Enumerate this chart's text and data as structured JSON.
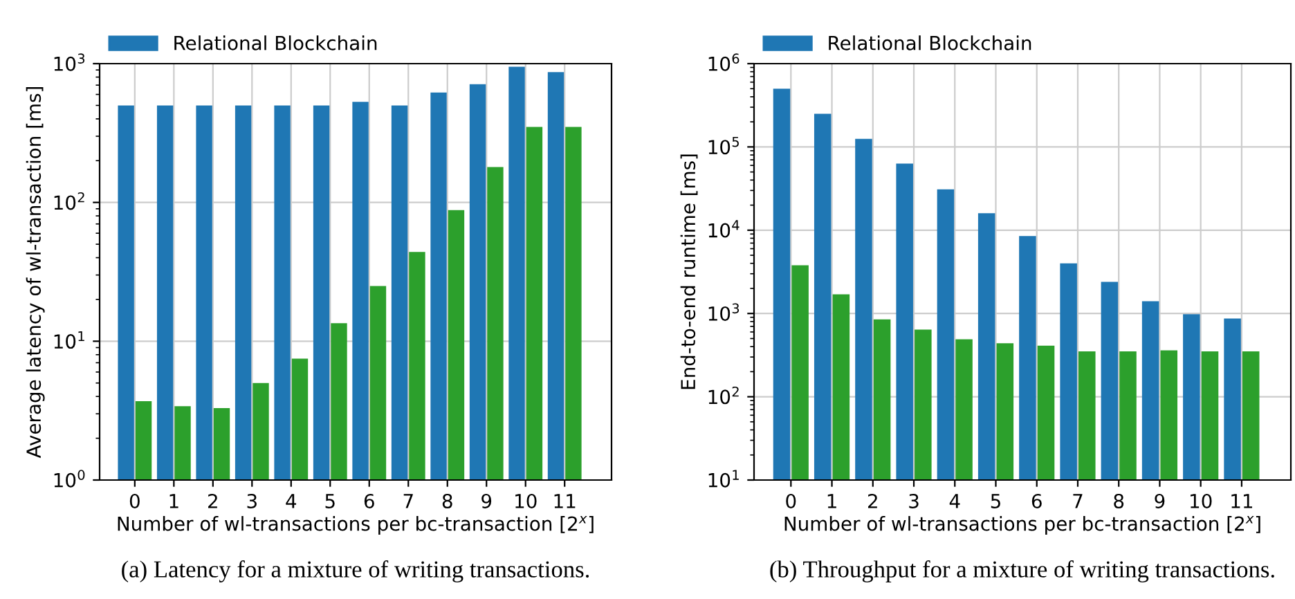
{
  "chart_data": [
    {
      "type": "bar",
      "categories": [
        "0",
        "1",
        "2",
        "3",
        "4",
        "5",
        "6",
        "7",
        "8",
        "9",
        "10",
        "11"
      ],
      "log": "y",
      "grid": true,
      "legend": "top left",
      "ylabel": "Average latency of wl-transaction [ms]",
      "xlabel": "Number of wl-transactions per bc-transaction [2$^{x}$]",
      "ylim": [
        1,
        1000
      ],
      "yticks": [
        {
          "value": 1,
          "label": "10$^{0}$"
        },
        {
          "value": 10,
          "label": "10$^{1}$"
        },
        {
          "value": 100,
          "label": "10$^{2}$"
        },
        {
          "value": 1000,
          "label": "10$^{3}$"
        }
      ],
      "series": [
        {
          "name": "Relational Blockchain",
          "color": "#1f77b4",
          "values": [
            500,
            500,
            500,
            500,
            500,
            500,
            530,
            500,
            620,
            710,
            950,
            870
          ]
        },
        {
          "color": "#2ca02c",
          "values": [
            3.7,
            3.4,
            3.3,
            5.0,
            7.5,
            13.5,
            25,
            44,
            88,
            180,
            350,
            350
          ]
        }
      ],
      "annotations": [
        "(a) Latency for a mixture of writing transactions."
      ]
    },
    {
      "type": "bar",
      "categories": [
        "0",
        "1",
        "2",
        "3",
        "4",
        "5",
        "6",
        "7",
        "8",
        "9",
        "10",
        "11"
      ],
      "log": "y",
      "grid": true,
      "legend": "top left",
      "ylabel": "End-to-end runtime [ms]",
      "xlabel": "Number of wl-transactions per bc-transaction [2$^{x}$]",
      "ylim": [
        10,
        1000000
      ],
      "yticks": [
        {
          "value": 10,
          "label": "10$^{1}$"
        },
        {
          "value": 100,
          "label": "10$^{2}$"
        },
        {
          "value": 1000,
          "label": "10$^{3}$"
        },
        {
          "value": 10000,
          "label": "10$^{4}$"
        },
        {
          "value": 100000,
          "label": "10$^{5}$"
        },
        {
          "value": 1000000,
          "label": "10$^{6}$"
        }
      ],
      "series": [
        {
          "name": "Relational Blockchain",
          "color": "#1f77b4",
          "values": [
            500000,
            250000,
            125000,
            63000,
            31000,
            16000,
            8500,
            4000,
            2400,
            1400,
            980,
            870
          ]
        },
        {
          "color": "#2ca02c",
          "values": [
            3800,
            1700,
            850,
            640,
            490,
            440,
            410,
            350,
            350,
            360,
            350,
            350
          ]
        }
      ],
      "annotations": [
        "(b) Throughput for a mixture of writing transactions."
      ]
    }
  ]
}
